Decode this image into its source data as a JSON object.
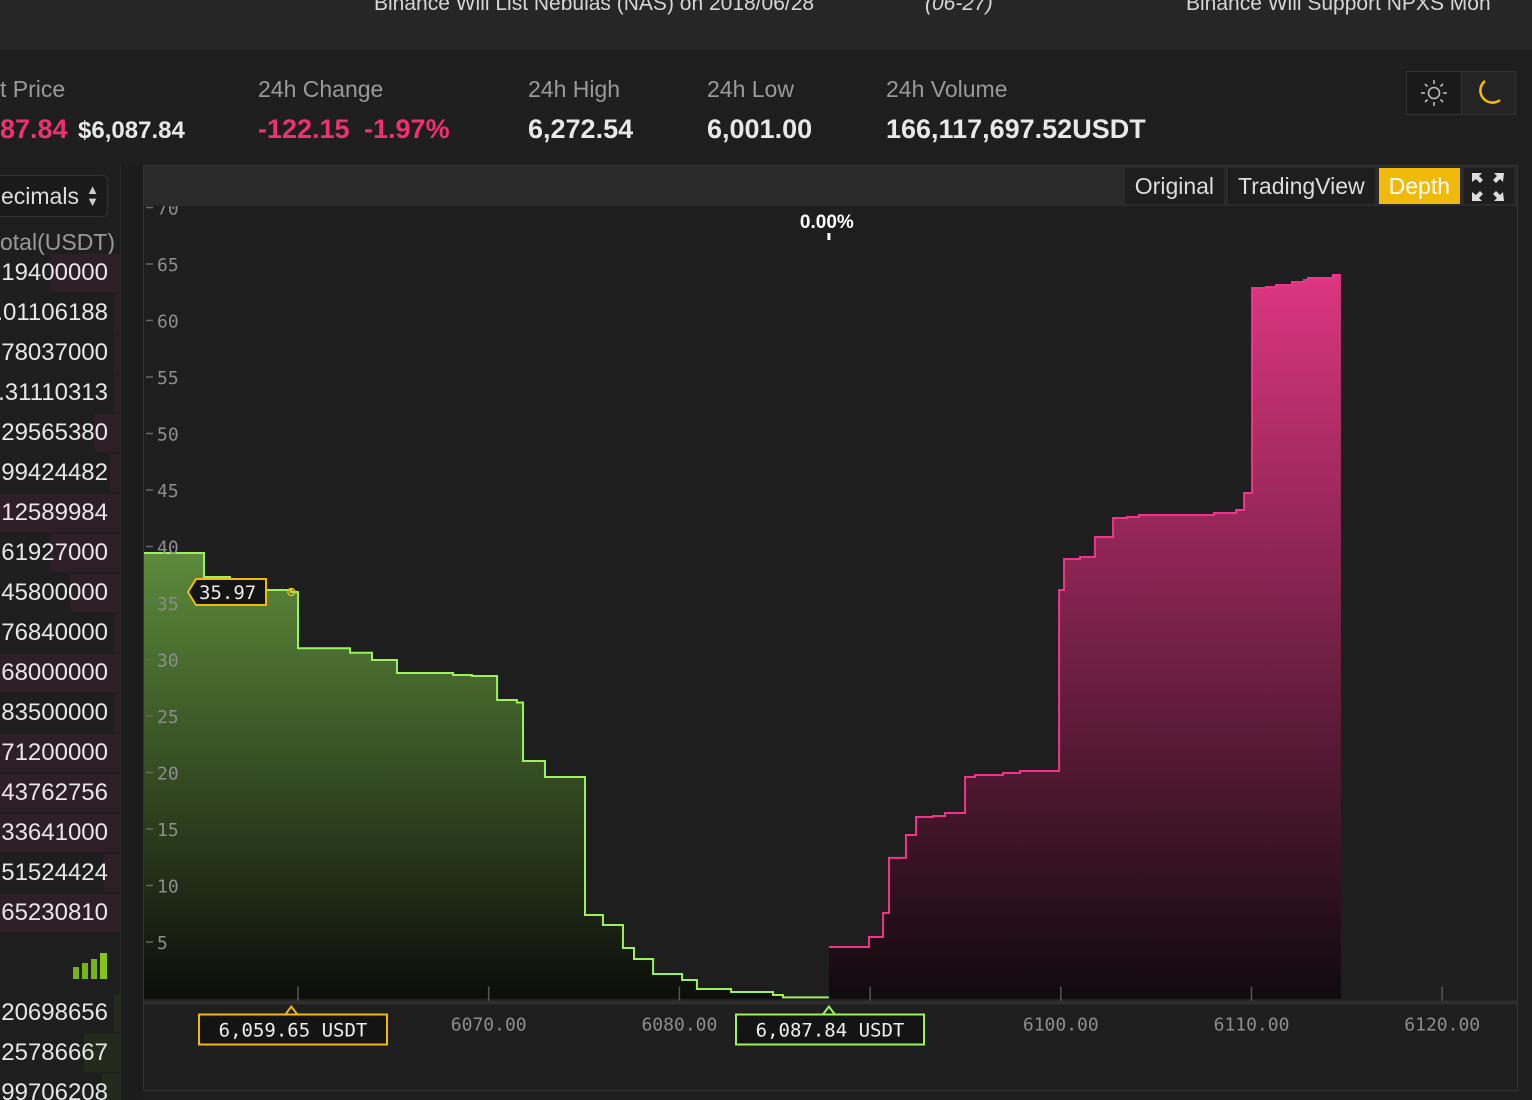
{
  "news": [
    "Binance Will List Nebulas (NAS) on 2018/06/28",
    "(06-27)",
    "Binance Will Support NPXS Mon"
  ],
  "ticker": {
    "last_price_label": "t Price",
    "last_price": "87.84",
    "last_price_usd": "$6,087.84",
    "change_label": "24h Change",
    "change": "-122.15",
    "change_pct": "-1.97%",
    "high_label": "24h High",
    "high": "6,272.54",
    "low_label": "24h Low",
    "low": "6,001.00",
    "volume_label": "24h Volume",
    "volume": "166,117,697.52USDT",
    "theme": {
      "light_icon": "sun-icon",
      "dark_icon": "moon-icon",
      "active": "dark"
    }
  },
  "orderbook": {
    "decimals_label": "ecimals",
    "header": "otal(USDT)",
    "asks": [
      {
        "total": "19400000",
        "depth": 0.58
      },
      {
        "total": ".01106188",
        "depth": 0.05
      },
      {
        "total": "78037000",
        "depth": 0.05
      },
      {
        "total": ".31110313",
        "depth": 0.05
      },
      {
        "total": "29565380",
        "depth": 0.22
      },
      {
        "total": "99424482",
        "depth": 0.08
      },
      {
        "total": "12589984",
        "depth": 1
      },
      {
        "total": "61927000",
        "depth": 0.58
      },
      {
        "total": "45800000",
        "depth": 0.42
      },
      {
        "total": "76840000",
        "depth": 0.05
      },
      {
        "total": "68000000",
        "depth": 1
      },
      {
        "total": "83500000",
        "depth": 0.05
      },
      {
        "total": "71200000",
        "depth": 1
      },
      {
        "total": "43762756",
        "depth": 1
      },
      {
        "total": "33641000",
        "depth": 1
      },
      {
        "total": "51524424",
        "depth": 0.13
      },
      {
        "total": "65230810",
        "depth": 1
      }
    ],
    "bids": [
      {
        "total": "20698656",
        "depth": 0.05
      },
      {
        "total": "25786667",
        "depth": 0.3
      },
      {
        "total": "99706208",
        "depth": 0.15
      }
    ],
    "signal_icon": "signal-bars-icon"
  },
  "chart_tabs": [
    {
      "label": "Original",
      "active": false
    },
    {
      "label": "TradingView",
      "active": false
    },
    {
      "label": "Depth",
      "active": true
    }
  ],
  "fullscreen_icon": "expand-icon",
  "colors": {
    "bid": "#9cf25a",
    "ask": "#f2338a",
    "accent": "#f0b90b",
    "red": "#f0306f"
  },
  "chart_data": {
    "type": "area",
    "subtype": "depth-step",
    "xlim": [
      6051.9,
      6124
    ],
    "ylim": [
      0,
      72
    ],
    "yticks": [
      5,
      10,
      15,
      20,
      25,
      30,
      35,
      40,
      45,
      50,
      55,
      60,
      65,
      70
    ],
    "xticks": [
      6060,
      6070,
      6080,
      6090,
      6100,
      6110,
      6120
    ],
    "xtick_labels": [
      "",
      "6070.00",
      "6080.00",
      "",
      "6100.00",
      "6110.00",
      "6120.00"
    ],
    "mid_label": "0.00%",
    "hover": {
      "price_label": "6,059.65 USDT",
      "depth_label": "35.97",
      "price": 6059.65,
      "depth": 35.97
    },
    "last_price_label": "6,087.84 USDT",
    "bids": [
      [
        6051.92,
        39.42
      ],
      [
        6055.07,
        37.3
      ],
      [
        6056.43,
        36.42
      ],
      [
        6058.27,
        36.15
      ],
      [
        6059.65,
        35.97
      ],
      [
        6060.0,
        31.0
      ],
      [
        6062.73,
        30.6
      ],
      [
        6063.88,
        29.96
      ],
      [
        6065.19,
        28.81
      ],
      [
        6068.13,
        28.63
      ],
      [
        6069.12,
        28.54
      ],
      [
        6070.44,
        26.42
      ],
      [
        6071.48,
        26.2
      ],
      [
        6071.8,
        21.02
      ],
      [
        6072.95,
        19.6
      ],
      [
        6075.05,
        7.39
      ],
      [
        6075.99,
        6.5
      ],
      [
        6077.04,
        4.47
      ],
      [
        6077.62,
        3.5
      ],
      [
        6078.62,
        2.17
      ],
      [
        6080.14,
        1.64
      ],
      [
        6080.92,
        0.84
      ],
      [
        6082.71,
        0.58
      ],
      [
        6084.91,
        0.31
      ],
      [
        6085.43,
        0.1
      ],
      [
        6087.84,
        0.1
      ]
    ],
    "asks": [
      [
        6087.84,
        4.56
      ],
      [
        6089.94,
        5.44
      ],
      [
        6090.68,
        7.57
      ],
      [
        6090.99,
        12.44
      ],
      [
        6091.88,
        14.47
      ],
      [
        6092.41,
        16.06
      ],
      [
        6093.3,
        16.15
      ],
      [
        6093.93,
        16.42
      ],
      [
        6094.98,
        19.6
      ],
      [
        6095.5,
        19.78
      ],
      [
        6096.97,
        19.96
      ],
      [
        6097.86,
        20.13
      ],
      [
        6099.91,
        36.15
      ],
      [
        6100.17,
        38.89
      ],
      [
        6101.01,
        39.07
      ],
      [
        6101.79,
        40.84
      ],
      [
        6102.74,
        42.52
      ],
      [
        6103.47,
        42.61
      ],
      [
        6104.1,
        42.79
      ],
      [
        6108.03,
        42.96
      ],
      [
        6109.19,
        43.23
      ],
      [
        6109.61,
        44.73
      ],
      [
        6110.03,
        62.88
      ],
      [
        6110.76,
        62.96
      ],
      [
        6111.28,
        63.14
      ],
      [
        6112.12,
        63.41
      ],
      [
        6112.75,
        63.58
      ],
      [
        6112.96,
        63.76
      ],
      [
        6114.27,
        64.03
      ],
      [
        6114.69,
        64.03
      ]
    ]
  }
}
